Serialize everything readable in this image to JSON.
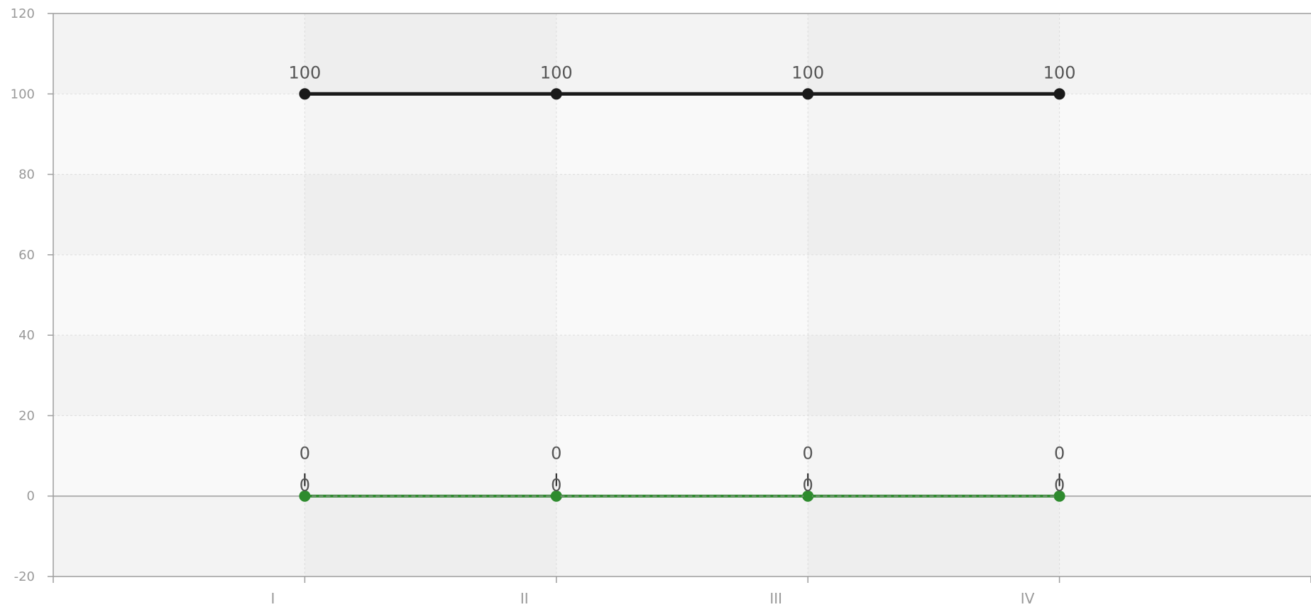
{
  "chart_data": {
    "type": "line",
    "title": "",
    "xlabel": "",
    "ylabel": "",
    "categories": [
      "I",
      "II",
      "III",
      "IV"
    ],
    "ylim": [
      -20,
      120
    ],
    "y_ticks": [
      "120",
      "100",
      "80",
      "60",
      "40",
      "20",
      "0",
      "-20"
    ],
    "grid": true,
    "legend": "none",
    "colors": {
      "series_black": "#1a1a1a",
      "series_green": "#2e8b2e",
      "band_light": "#f9f9f9",
      "band_dark": "#f3f3f3",
      "axis": "#9e9e9e",
      "grid": "#dddddd"
    },
    "series": [
      {
        "values": [
          100,
          100,
          100,
          100
        ],
        "labels": [
          "100",
          "100",
          "100",
          "100"
        ]
      },
      {
        "values": [
          0,
          0,
          0,
          0
        ],
        "labels": [
          "0",
          "0",
          "0",
          "0"
        ]
      },
      {
        "values": [
          0,
          0,
          0,
          0
        ],
        "labels": [
          "0",
          "0",
          "0",
          "0"
        ]
      }
    ]
  }
}
